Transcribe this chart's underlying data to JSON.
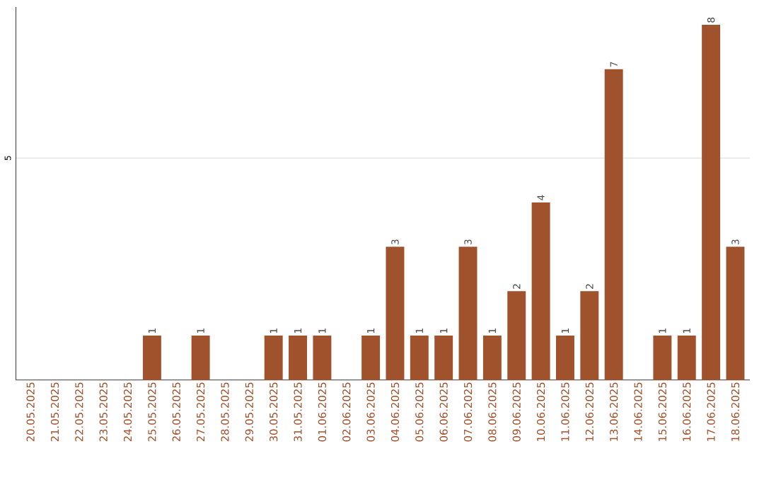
{
  "chart_data": {
    "type": "bar",
    "categories": [
      "20.05.2025",
      "21.05.2025",
      "22.05.2025",
      "23.05.2025",
      "24.05.2025",
      "25.05.2025",
      "26.05.2025",
      "27.05.2025",
      "28.05.2025",
      "29.05.2025",
      "30.05.2025",
      "31.05.2025",
      "01.06.2025",
      "02.06.2025",
      "03.06.2025",
      "04.06.2025",
      "05.06.2025",
      "06.06.2025",
      "07.06.2025",
      "08.06.2025",
      "09.06.2025",
      "10.06.2025",
      "11.06.2025",
      "12.06.2025",
      "13.06.2025",
      "14.06.2025",
      "15.06.2025",
      "16.06.2025",
      "17.06.2025",
      "18.06.2025"
    ],
    "values": [
      0,
      0,
      0,
      0,
      0,
      1,
      0,
      1,
      0,
      0,
      1,
      1,
      1,
      0,
      1,
      3,
      1,
      1,
      3,
      1,
      2,
      4,
      1,
      2,
      7,
      0,
      1,
      1,
      8,
      3
    ],
    "value_labels": [
      null,
      null,
      null,
      null,
      null,
      "1",
      null,
      "1",
      null,
      null,
      "1",
      "1",
      "1",
      null,
      "1",
      "3",
      "1",
      "1",
      "3",
      "1",
      "2",
      "4",
      "1",
      "2",
      "7",
      null,
      "1",
      "1",
      "8",
      "3"
    ],
    "color": "#a0522d",
    "ylim": [
      0,
      8.4
    ],
    "yticks": [
      5
    ],
    "grid": "y"
  }
}
